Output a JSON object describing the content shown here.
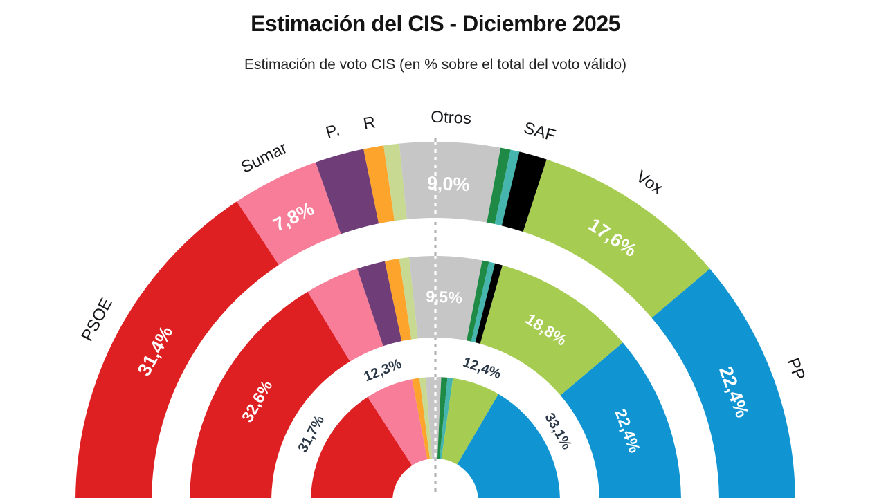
{
  "header": {
    "title": "Estimación del CIS - Diciembre 2025",
    "subtitle": "Estimación de voto CIS (en % sobre el total del voto válido)"
  },
  "chart_data": {
    "type": "pie",
    "variant": "half-donut-concentric-rings",
    "orientation": "top-semicircle",
    "unit": "% sobre el total del voto válido",
    "center_line": {
      "style": "dashed",
      "position_percent": 50,
      "color_on_white": "#b3b3b3",
      "color_on_segments": "#ffffff"
    },
    "colors": {
      "psoe_red": "#de2023",
      "sumar_pink": "#f87d99",
      "purple": "#6f3d77",
      "orange": "#fca42c",
      "light_green": "#c8da92",
      "otros_gray": "#c6c6c6",
      "dark_green": "#1e8a45",
      "teal": "#45b5ad",
      "saf_black": "#000000",
      "vox_green": "#a6cc52",
      "pp_blue": "#1095d2"
    },
    "rings": [
      {
        "name": "estimacion-cis-diciembre-2025",
        "position": "outer",
        "segments": [
          {
            "party": "PSOE",
            "value": 31.4,
            "value_label": "31,4%",
            "color": "#de2023"
          },
          {
            "party": "Sumar",
            "value": 7.8,
            "value_label": "7,8%",
            "color": "#f87d99"
          },
          {
            "party": "P.",
            "value": 4.4,
            "value_label": null,
            "color": "#6f3d77"
          },
          {
            "party": "R",
            "value": 1.8,
            "value_label": null,
            "color": "#fca42c"
          },
          {
            "party": null,
            "value": 1.4,
            "value_label": null,
            "color": "#c8da92"
          },
          {
            "party": "Otros",
            "value": 9.0,
            "value_label": "9,0%",
            "color": "#c6c6c6"
          },
          {
            "party": null,
            "value": 0.9,
            "value_label": null,
            "color": "#1e8a45"
          },
          {
            "party": null,
            "value": 0.8,
            "value_label": null,
            "color": "#45b5ad"
          },
          {
            "party": "SAF",
            "value": 2.5,
            "value_label": null,
            "color": "#000000"
          },
          {
            "party": "Vox",
            "value": 17.6,
            "value_label": "17,6%",
            "color": "#a6cc52"
          },
          {
            "party": "PP",
            "value": 22.4,
            "value_label": "22,4%",
            "color": "#1095d2"
          }
        ]
      },
      {
        "name": "middle-ring",
        "position": "middle",
        "segments": [
          {
            "party": null,
            "value": 32.6,
            "value_label": "32,6%",
            "color": "#de2023"
          },
          {
            "party": null,
            "value": 7.1,
            "value_label": null,
            "color": "#f87d99"
          },
          {
            "party": null,
            "value": 3.7,
            "value_label": null,
            "color": "#6f3d77"
          },
          {
            "party": null,
            "value": 1.9,
            "value_label": null,
            "color": "#fca42c"
          },
          {
            "party": null,
            "value": 1.3,
            "value_label": null,
            "color": "#c8da92"
          },
          {
            "party": null,
            "value": 9.5,
            "value_label": "9,5%",
            "color": "#c6c6c6"
          },
          {
            "party": null,
            "value": 0.9,
            "value_label": null,
            "color": "#1e8a45"
          },
          {
            "party": null,
            "value": 0.8,
            "value_label": null,
            "color": "#45b5ad"
          },
          {
            "party": null,
            "value": 1.0,
            "value_label": null,
            "color": "#000000"
          },
          {
            "party": null,
            "value": 18.8,
            "value_label": "18,8%",
            "color": "#a6cc52"
          },
          {
            "party": null,
            "value": 22.4,
            "value_label": "22,4%",
            "color": "#1095d2"
          }
        ]
      },
      {
        "name": "inner-ring",
        "position": "inner",
        "segments": [
          {
            "party": null,
            "value": 31.7,
            "value_label": "31,7%",
            "color": "#de2023"
          },
          {
            "party": null,
            "value": 12.3,
            "value_label": "12,3%",
            "color": "#f87d99"
          },
          {
            "party": null,
            "value": 1.9,
            "value_label": null,
            "color": "#fca42c"
          },
          {
            "party": null,
            "value": 1.6,
            "value_label": null,
            "color": "#c8da92"
          },
          {
            "party": null,
            "value": 4.0,
            "value_label": null,
            "color": "#c6c6c6"
          },
          {
            "party": null,
            "value": 1.6,
            "value_label": null,
            "color": "#1e8a45"
          },
          {
            "party": null,
            "value": 1.4,
            "value_label": null,
            "color": "#45b5ad"
          },
          {
            "party": null,
            "value": 12.4,
            "value_label": "12,4%",
            "color": "#a6cc52"
          },
          {
            "party": null,
            "value": 33.1,
            "value_label": "33,1%",
            "color": "#1095d2"
          }
        ]
      }
    ]
  }
}
